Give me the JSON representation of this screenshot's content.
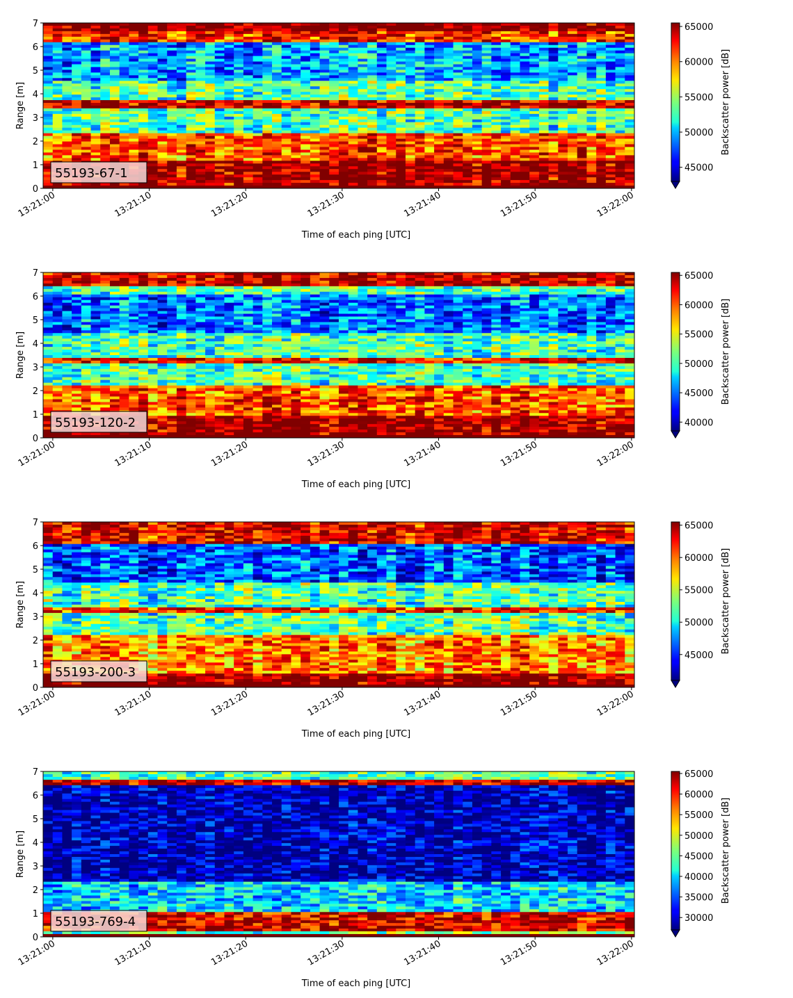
{
  "chart_data": [
    {
      "type": "heatmap",
      "label": "55193-67-1",
      "xlabel": "Time of each ping [UTC]",
      "ylabel": "Range [m]",
      "colorbar_label": "Backscatter power [dB]",
      "colormap": "jet",
      "x_ticks": [
        "13:21:00",
        "13:21:10",
        "13:21:20",
        "13:21:30",
        "13:21:40",
        "13:21:50",
        "13:22:00"
      ],
      "xlim_seconds": [
        -1,
        60.3
      ],
      "y_ticks": [
        0,
        1,
        2,
        3,
        4,
        5,
        6,
        7
      ],
      "ylim": [
        0,
        7
      ],
      "color_range": [
        43000,
        65500
      ],
      "colorbar_ticks": [
        45000,
        50000,
        55000,
        60000,
        65000
      ],
      "features": [
        {
          "range": [
            0.1,
            1.15
          ],
          "value": 65000
        },
        {
          "range": [
            1.15,
            2.3
          ],
          "value": 61000
        },
        {
          "range": [
            3.4,
            3.7
          ],
          "value": 64000
        },
        {
          "range": [
            4.5,
            6.2
          ],
          "value": 49500
        },
        {
          "range": [
            6.2,
            6.6
          ],
          "value": 62000
        },
        {
          "range": [
            6.6,
            7.0
          ],
          "value": 65500
        }
      ]
    },
    {
      "type": "heatmap",
      "label": "55193-120-2",
      "xlabel": "Time of each ping [UTC]",
      "ylabel": "Range [m]",
      "colorbar_label": "Backscatter power [dB]",
      "colormap": "jet",
      "x_ticks": [
        "13:21:00",
        "13:21:10",
        "13:21:20",
        "13:21:30",
        "13:21:40",
        "13:21:50",
        "13:22:00"
      ],
      "xlim_seconds": [
        -1,
        60.3
      ],
      "y_ticks": [
        0,
        1,
        2,
        3,
        4,
        5,
        6,
        7
      ],
      "ylim": [
        0,
        7
      ],
      "color_range": [
        38500,
        65500
      ],
      "colorbar_ticks": [
        40000,
        45000,
        50000,
        55000,
        60000,
        65000
      ],
      "features": [
        {
          "range": [
            0.1,
            0.9
          ],
          "value": 65000
        },
        {
          "range": [
            0.9,
            2.2
          ],
          "value": 60000
        },
        {
          "range": [
            3.1,
            3.35
          ],
          "value": 62000
        },
        {
          "range": [
            4.4,
            6.1
          ],
          "value": 45000
        },
        {
          "range": [
            6.4,
            7.0
          ],
          "value": 64000
        }
      ]
    },
    {
      "type": "heatmap",
      "label": "55193-200-3",
      "xlabel": "Time of each ping [UTC]",
      "ylabel": "Range [m]",
      "colorbar_label": "Backscatter power [dB]",
      "colormap": "jet",
      "x_ticks": [
        "13:21:00",
        "13:21:10",
        "13:21:20",
        "13:21:30",
        "13:21:40",
        "13:21:50",
        "13:22:00"
      ],
      "xlim_seconds": [
        -1,
        60.3
      ],
      "y_ticks": [
        0,
        1,
        2,
        3,
        4,
        5,
        6,
        7
      ],
      "ylim": [
        0,
        7
      ],
      "color_range": [
        41000,
        65500
      ],
      "colorbar_ticks": [
        45000,
        50000,
        55000,
        60000,
        65000
      ],
      "features": [
        {
          "range": [
            0.1,
            0.6
          ],
          "value": 65000
        },
        {
          "range": [
            0.6,
            2.2
          ],
          "value": 59000
        },
        {
          "range": [
            3.1,
            3.35
          ],
          "value": 62000
        },
        {
          "range": [
            4.4,
            6.1
          ],
          "value": 46000
        },
        {
          "range": [
            6.1,
            7.0
          ],
          "value": 63000
        }
      ]
    },
    {
      "type": "heatmap",
      "label": "55193-769-4",
      "xlabel": "Time of each ping [UTC]",
      "ylabel": "Range [m]",
      "colorbar_label": "Backscatter power [dB]",
      "colormap": "jet",
      "x_ticks": [
        "13:21:00",
        "13:21:10",
        "13:21:20",
        "13:21:30",
        "13:21:40",
        "13:21:50",
        "13:22:00"
      ],
      "xlim_seconds": [
        -1,
        60.3
      ],
      "y_ticks": [
        0,
        1,
        2,
        3,
        4,
        5,
        6,
        7
      ],
      "ylim": [
        0,
        7
      ],
      "color_range": [
        27000,
        65500
      ],
      "colorbar_ticks": [
        30000,
        35000,
        40000,
        45000,
        50000,
        55000,
        60000,
        65000
      ],
      "features": [
        {
          "range": [
            0.2,
            1.0
          ],
          "value": 62000
        },
        {
          "range": [
            1.0,
            2.3
          ],
          "value": 40000
        },
        {
          "range": [
            2.3,
            6.4
          ],
          "value": 29000
        },
        {
          "range": [
            6.4,
            6.6
          ],
          "value": 63000
        },
        {
          "range": [
            6.6,
            7.0
          ],
          "value": 44000
        }
      ]
    }
  ]
}
